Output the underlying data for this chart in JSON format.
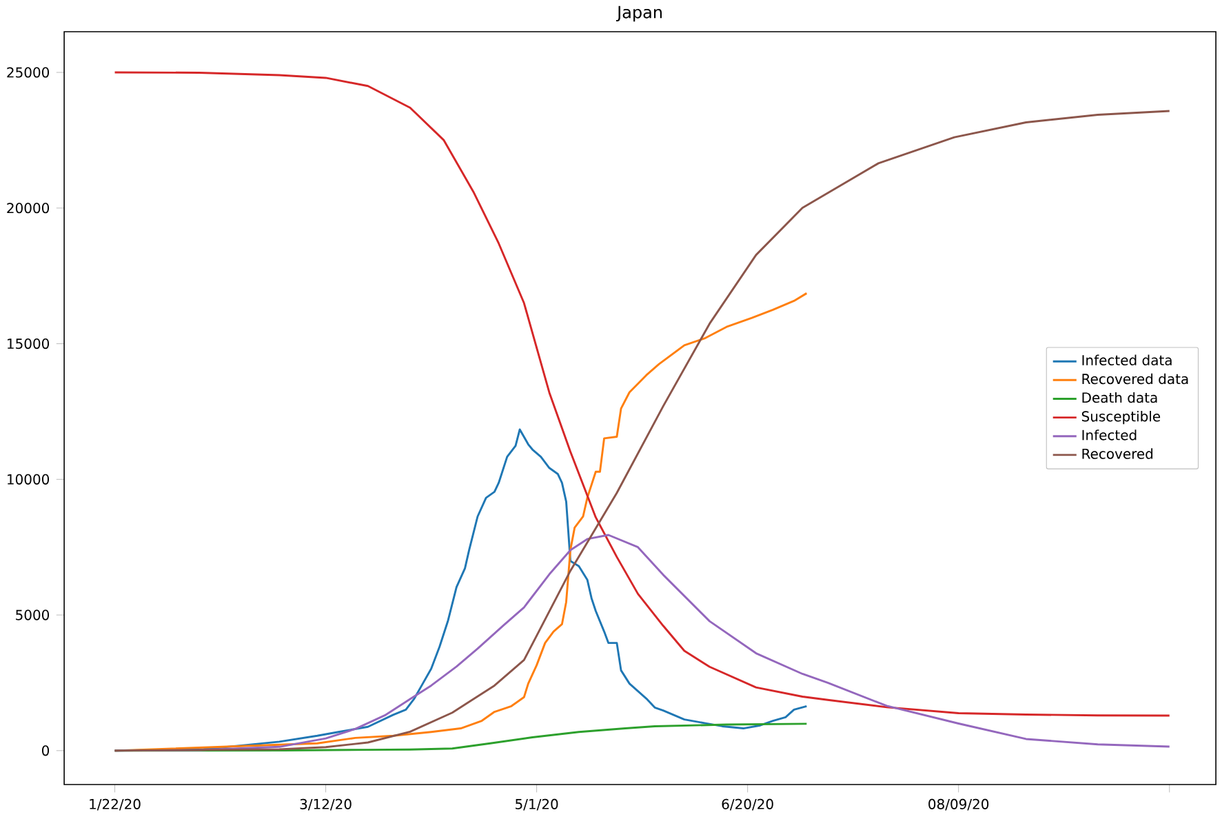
{
  "chart_data": {
    "type": "line",
    "title": "Japan",
    "legend": "right",
    "grid": false,
    "marker": "none",
    "line_style": "solid",
    "xlim": [
      "2020-01-10",
      "2020-10-09"
    ],
    "xticks": [
      {
        "value": "2020-01-22",
        "label": "1/22/20"
      },
      {
        "value": "2020-03-12",
        "label": "3/12/20"
      },
      {
        "value": "2020-05-01",
        "label": "5/1/20"
      },
      {
        "value": "2020-06-20",
        "label": "6/20/20"
      },
      {
        "value": "2020-08-09",
        "label": "08/09/20"
      },
      {
        "value": "2020-09-28",
        "label": null
      }
    ],
    "ylim": [
      -1250,
      26500
    ],
    "yticks": [
      0,
      5000,
      10000,
      15000,
      20000,
      25000
    ],
    "series": [
      {
        "name": "Infected data",
        "color": "#1f77b4",
        "x": [
          "2020-01-22",
          "2020-02-12",
          "2020-02-21",
          "2020-03-01",
          "2020-03-10",
          "2020-03-15",
          "2020-03-22",
          "2020-03-28",
          "2020-03-31",
          "2020-04-02",
          "2020-04-04",
          "2020-04-06",
          "2020-04-08",
          "2020-04-10",
          "2020-04-12",
          "2020-04-14",
          "2020-04-15",
          "2020-04-17",
          "2020-04-19",
          "2020-04-21",
          "2020-04-22",
          "2020-04-24",
          "2020-04-26",
          "2020-04-27",
          "2020-04-29",
          "2020-04-30",
          "2020-05-02",
          "2020-05-04",
          "2020-05-06",
          "2020-05-07",
          "2020-05-08",
          "2020-05-09",
          "2020-05-11",
          "2020-05-13",
          "2020-05-14",
          "2020-05-15",
          "2020-05-17",
          "2020-05-18",
          "2020-05-20",
          "2020-05-21",
          "2020-05-23",
          "2020-05-27",
          "2020-05-29",
          "2020-05-31",
          "2020-06-05",
          "2020-06-10",
          "2020-06-14",
          "2020-06-19",
          "2020-06-23",
          "2020-06-26",
          "2020-06-29",
          "2020-07-01",
          "2020-07-04"
        ],
        "values": [
          0,
          55,
          190,
          330,
          550,
          690,
          880,
          1320,
          1510,
          1920,
          2470,
          3020,
          3840,
          4800,
          6030,
          6720,
          7400,
          8630,
          9320,
          9540,
          9870,
          10830,
          11240,
          11840,
          11290,
          11100,
          10830,
          10420,
          10200,
          9870,
          9180,
          6990,
          6800,
          6300,
          5620,
          5150,
          4390,
          3970,
          3970,
          2960,
          2470,
          1920,
          1590,
          1480,
          1150,
          1010,
          900,
          820,
          930,
          1100,
          1230,
          1510,
          1640
        ]
      },
      {
        "name": "Recovered data",
        "color": "#ff7f0e",
        "x": [
          "2020-01-22",
          "2020-03-10",
          "2020-03-19",
          "2020-03-28",
          "2020-04-06",
          "2020-04-13",
          "2020-04-18",
          "2020-04-21",
          "2020-04-25",
          "2020-04-28",
          "2020-04-29",
          "2020-05-01",
          "2020-05-03",
          "2020-05-05",
          "2020-05-07",
          "2020-05-08",
          "2020-05-09",
          "2020-05-10",
          "2020-05-12",
          "2020-05-13",
          "2020-05-15",
          "2020-05-16",
          "2020-05-17",
          "2020-05-20",
          "2020-05-21",
          "2020-05-23",
          "2020-05-27",
          "2020-05-30",
          "2020-06-05",
          "2020-06-10",
          "2020-06-15",
          "2020-06-21",
          "2020-06-26",
          "2020-07-01",
          "2020-07-04"
        ],
        "values": [
          0,
          270,
          470,
          550,
          690,
          820,
          1100,
          1430,
          1640,
          1970,
          2470,
          3150,
          3970,
          4390,
          4660,
          5480,
          7400,
          8220,
          8630,
          9320,
          10280,
          10280,
          11510,
          11570,
          12610,
          13210,
          13840,
          14250,
          14940,
          15210,
          15620,
          15950,
          16250,
          16580,
          16860
        ]
      },
      {
        "name": "Death data",
        "color": "#2ca02c",
        "x": [
          "2020-01-22",
          "2020-03-02",
          "2020-03-22",
          "2020-04-01",
          "2020-04-11",
          "2020-04-20",
          "2020-04-30",
          "2020-05-11",
          "2020-05-22",
          "2020-05-29",
          "2020-06-15",
          "2020-07-04"
        ],
        "values": [
          0,
          10,
          30,
          40,
          80,
          270,
          490,
          690,
          820,
          900,
          960,
          990
        ]
      },
      {
        "name": "Susceptible",
        "color": "#d62728",
        "x": [
          "2020-01-22",
          "2020-02-11",
          "2020-03-01",
          "2020-03-12",
          "2020-03-22",
          "2020-04-01",
          "2020-04-09",
          "2020-04-16",
          "2020-04-22",
          "2020-04-28",
          "2020-05-04",
          "2020-05-09",
          "2020-05-15",
          "2020-05-20",
          "2020-05-25",
          "2020-05-31",
          "2020-06-05",
          "2020-06-11",
          "2020-06-22",
          "2020-07-03",
          "2020-07-09",
          "2020-07-23",
          "2020-08-09",
          "2020-08-25",
          "2020-09-11",
          "2020-09-28"
        ],
        "values": [
          25000,
          24990,
          24900,
          24800,
          24500,
          23700,
          22500,
          20600,
          18700,
          16500,
          13200,
          11020,
          8600,
          7140,
          5780,
          4600,
          3680,
          3090,
          2330,
          1990,
          1870,
          1600,
          1380,
          1330,
          1300,
          1290
        ]
      },
      {
        "name": "Infected",
        "color": "#9467bd",
        "x": [
          "2020-01-22",
          "2020-02-11",
          "2020-03-01",
          "2020-03-12",
          "2020-03-19",
          "2020-03-26",
          "2020-04-01",
          "2020-04-06",
          "2020-04-12",
          "2020-04-17",
          "2020-04-23",
          "2020-04-28",
          "2020-05-04",
          "2020-05-09",
          "2020-05-13",
          "2020-05-18",
          "2020-05-25",
          "2020-05-31",
          "2020-06-11",
          "2020-06-22",
          "2020-07-03",
          "2020-07-09",
          "2020-07-23",
          "2020-08-09",
          "2020-08-25",
          "2020-09-11",
          "2020-09-28"
        ],
        "values": [
          0,
          20,
          140,
          450,
          800,
          1300,
          1900,
          2400,
          3100,
          3760,
          4600,
          5280,
          6500,
          7390,
          7800,
          7950,
          7500,
          6480,
          4770,
          3590,
          2830,
          2500,
          1650,
          1000,
          430,
          230,
          150
        ]
      },
      {
        "name": "Recovered",
        "color": "#8c564b",
        "x": [
          "2020-01-22",
          "2020-03-01",
          "2020-03-12",
          "2020-03-22",
          "2020-04-01",
          "2020-04-11",
          "2020-04-21",
          "2020-04-28",
          "2020-05-09",
          "2020-05-20",
          "2020-05-31",
          "2020-06-11",
          "2020-06-22",
          "2020-07-03",
          "2020-07-21",
          "2020-08-08",
          "2020-08-25",
          "2020-09-11",
          "2020-09-28"
        ],
        "values": [
          0,
          50,
          130,
          300,
          700,
          1400,
          2400,
          3340,
          6630,
          9500,
          12700,
          15740,
          18270,
          20010,
          21650,
          22610,
          23160,
          23440,
          23580
        ]
      }
    ]
  }
}
